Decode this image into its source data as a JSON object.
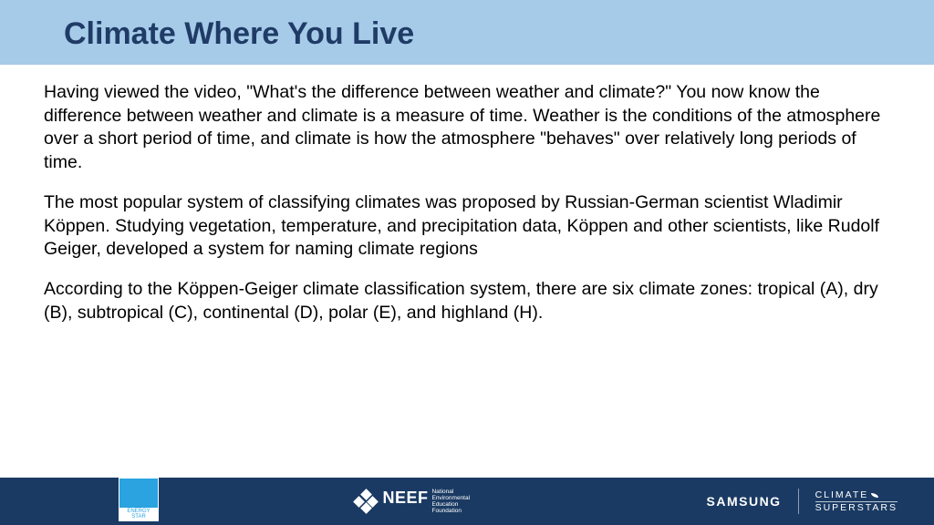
{
  "colors": {
    "title_band_bg": "#a6cbe8",
    "title_text": "#1f3b66",
    "body_text": "#000000",
    "footer_bg": "#1a3a63",
    "footer_text": "#ffffff",
    "energystar_bg": "#2aa3e0",
    "energystar_label_bg": "#ffffff",
    "energystar_label_text": "#2aa3e0"
  },
  "typography": {
    "title_fontsize": "34px",
    "body_fontsize": "19.5px",
    "body_lineheight": "1.32",
    "neef_big_fontsize": "18px",
    "samsung_fontsize": "14px",
    "climate_fontsize": "10.5px",
    "energystar_label_fontsize": "6px"
  },
  "title": "Climate Where You Live",
  "paragraphs": [
    "Having viewed the video, \"What's the difference between weather and climate?\" You now know the difference between weather and climate is a measure of time. Weather is the conditions of the atmosphere over a short period of time, and climate is how the atmosphere \"behaves\" over relatively long periods of time.",
    "The most popular system of classifying climates was proposed by Russian-German scientist Wladimir Köppen. Studying vegetation, temperature, and precipitation data, Köppen and other scientists, like Rudolf Geiger, developed a system for naming climate regions",
    "According to the Köppen-Geiger climate classification system, there are six climate zones: tropical (A), dry (B), subtropical (C), continental (D), polar (E), and highland (H)."
  ],
  "footer": {
    "energystar_label": "ENERGY STAR",
    "neef_big": "NEEF",
    "neef_small_line1": "National",
    "neef_small_line2": "Environmental",
    "neef_small_line3": "Education",
    "neef_small_line4": "Foundation",
    "samsung": "SAMSUNG",
    "climate_line1": "CLIMATE",
    "climate_line2": "SUPERSTARS"
  }
}
